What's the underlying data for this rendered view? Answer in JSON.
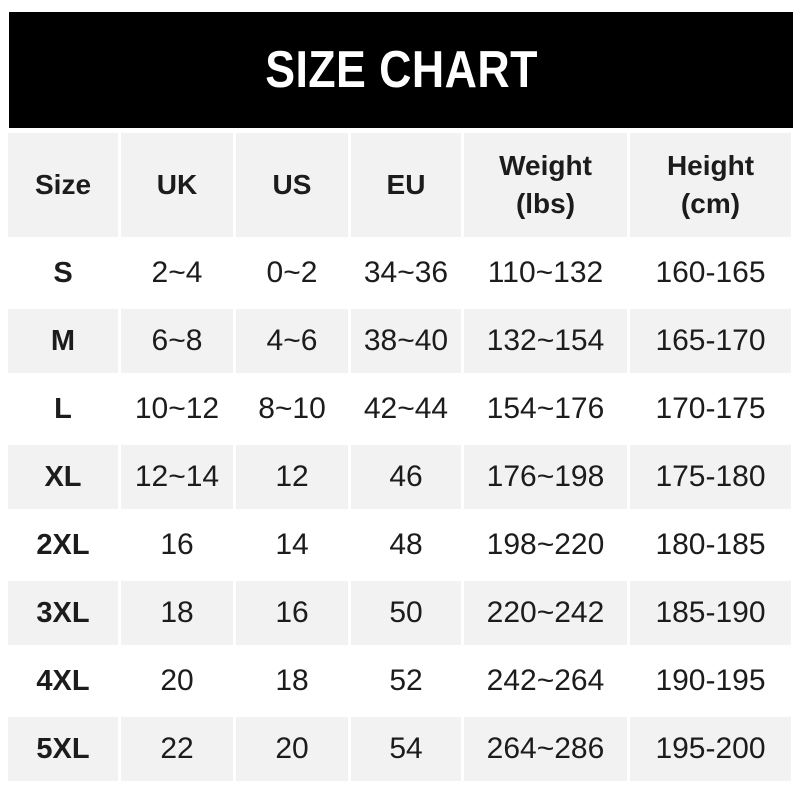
{
  "chart_data": {
    "type": "table",
    "title": "SIZE CHART",
    "columns": [
      "Size",
      "UK",
      "US",
      "EU",
      "Weight\n(lbs)",
      "Height\n(cm)"
    ],
    "rows": [
      [
        "S",
        "2~4",
        "0~2",
        "34~36",
        "110~132",
        "160-165"
      ],
      [
        "M",
        "6~8",
        "4~6",
        "38~40",
        "132~154",
        "165-170"
      ],
      [
        "L",
        "10~12",
        "8~10",
        "42~44",
        "154~176",
        "170-175"
      ],
      [
        "XL",
        "12~14",
        "12",
        "46",
        "176~198",
        "175-180"
      ],
      [
        "2XL",
        "16",
        "14",
        "48",
        "198~220",
        "180-185"
      ],
      [
        "3XL",
        "18",
        "16",
        "50",
        "220~242",
        "185-190"
      ],
      [
        "4XL",
        "20",
        "18",
        "52",
        "242~264",
        "190-195"
      ],
      [
        "5XL",
        "22",
        "20",
        "54",
        "264~286",
        "195-200"
      ]
    ],
    "legend": "none",
    "grid": "off"
  },
  "colors": {
    "banner_bg": "#000000",
    "banner_text": "#ffffff",
    "header_bg": "#f2f2f2",
    "row_bg": "#ffffff",
    "row_alt_bg": "#f2f2f2",
    "text_color": "#1c1c1c"
  }
}
